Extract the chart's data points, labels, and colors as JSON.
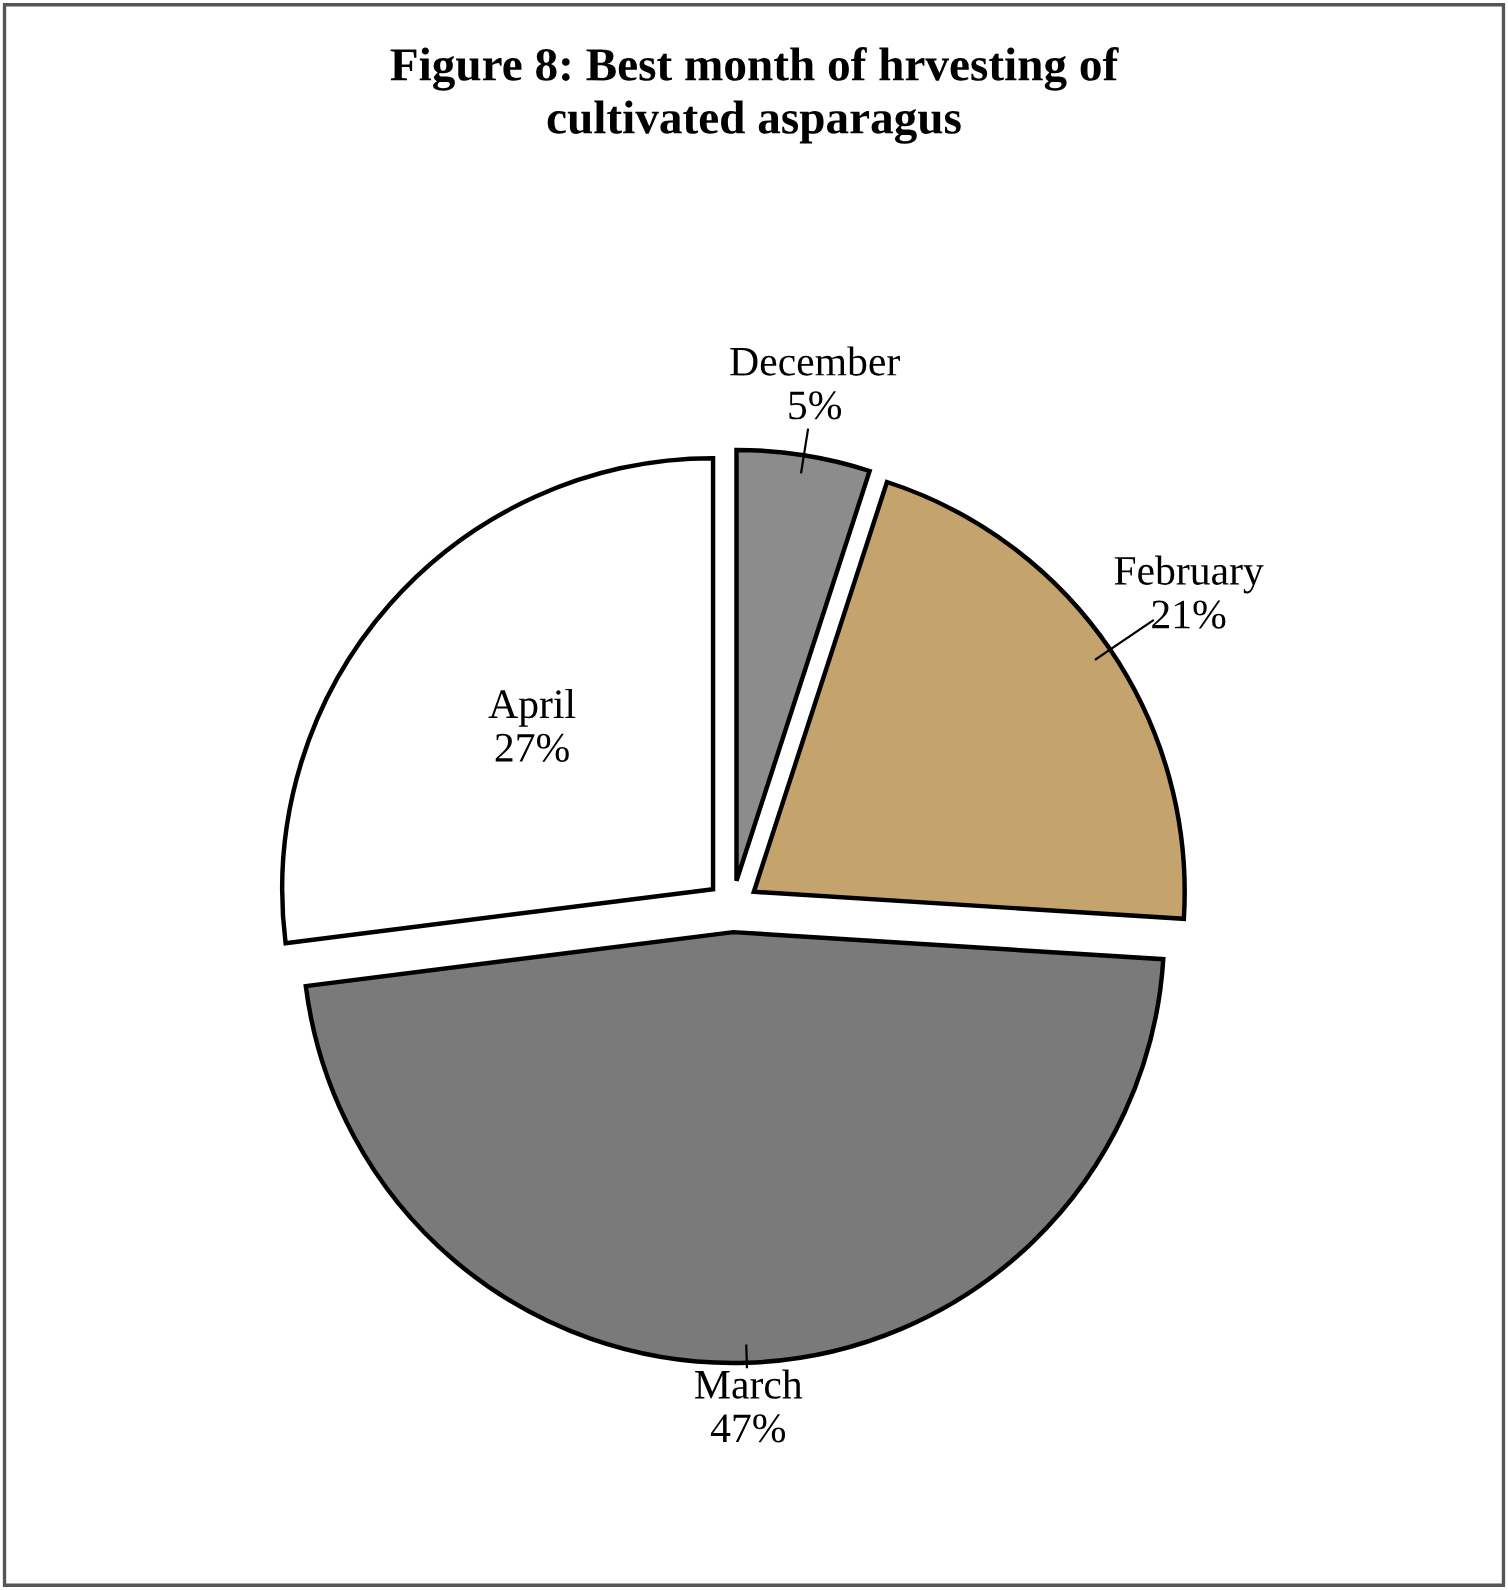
{
  "chart_data": {
    "type": "pie",
    "title": "Figure 8: Best month of hrvesting of\ncultivated asparagus",
    "categories": [
      "December",
      "February",
      "March",
      "April"
    ],
    "values": [
      5,
      21,
      47,
      27
    ],
    "value_labels": [
      "5%",
      "21%",
      "47%",
      "27%"
    ],
    "colors": [
      "#8c8c8c",
      "#c4a46c",
      "#7a7a7a",
      "#ffffff"
    ],
    "legend": false
  }
}
